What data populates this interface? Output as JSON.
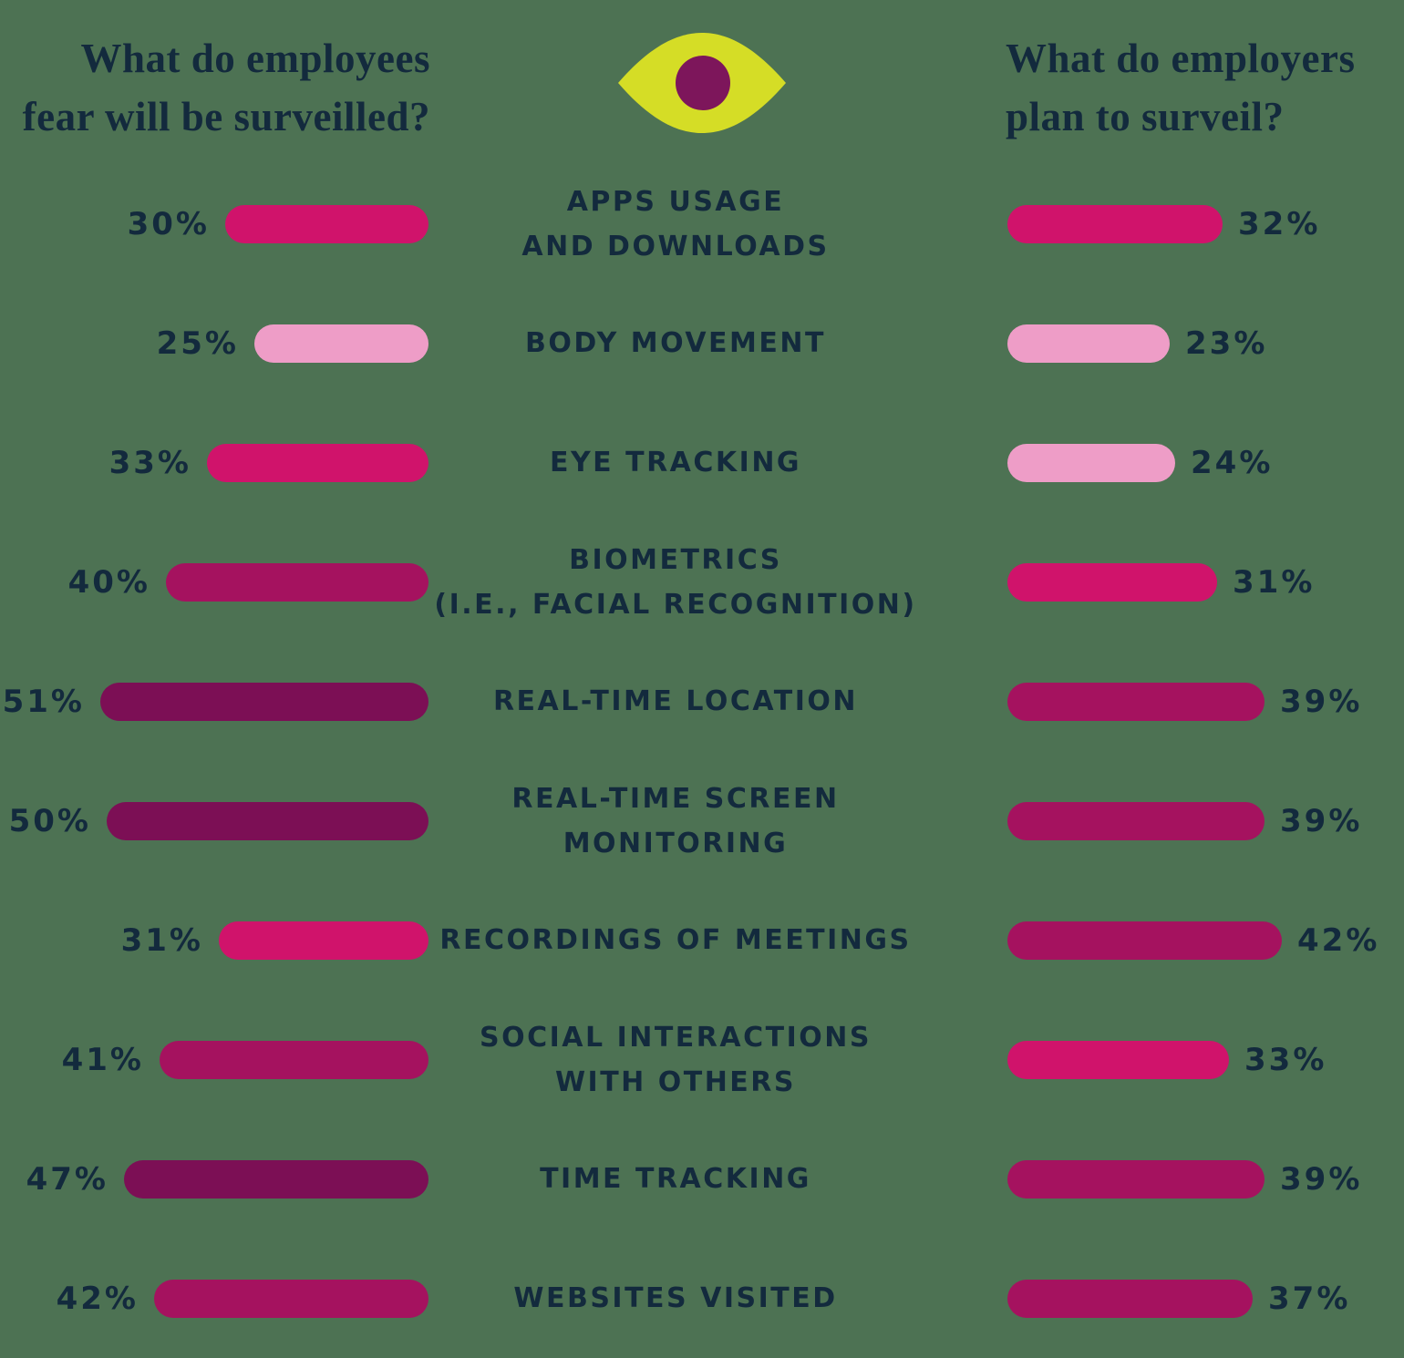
{
  "page": {
    "background_color": "#4d7253",
    "text_color": "#132a3d"
  },
  "headers": {
    "left": {
      "line1": "What do employees",
      "line2": "fear will be surveilled?"
    },
    "right": {
      "line1": "What do employers",
      "line2": "plan to surveil?"
    }
  },
  "eye_icon": {
    "iris_color": "#d5dd26",
    "pupil_color": "#7d165b"
  },
  "palette": {
    "light": "#ee9dc7",
    "bright": "#d0136b",
    "medium": "#a5125f",
    "dark": "#7c0f55"
  },
  "rows": [
    {
      "category_lines": [
        "APPS USAGE",
        "AND DOWNLOADS"
      ],
      "left": {
        "label": "30%",
        "value": 30
      },
      "right": {
        "label": "32%",
        "value": 32
      }
    },
    {
      "category_lines": [
        "BODY MOVEMENT"
      ],
      "left": {
        "label": "25%",
        "value": 25
      },
      "right": {
        "label": "23%",
        "value": 23
      }
    },
    {
      "category_lines": [
        "EYE TRACKING"
      ],
      "left": {
        "label": "33%",
        "value": 33
      },
      "right": {
        "label": "24%",
        "value": 24
      }
    },
    {
      "category_lines": [
        "BIOMETRICS",
        "(I.E., FACIAL RECOGNITION)"
      ],
      "left": {
        "label": "40%",
        "value": 40
      },
      "right": {
        "label": "31%",
        "value": 31
      }
    },
    {
      "category_lines": [
        "REAL-TIME LOCATION"
      ],
      "left": {
        "label": "51%",
        "value": 51
      },
      "right": {
        "label": "39%",
        "value": 39
      }
    },
    {
      "category_lines": [
        "REAL-TIME SCREEN",
        "MONITORING"
      ],
      "left": {
        "label": "50%",
        "value": 50
      },
      "right": {
        "label": "39%",
        "value": 39
      }
    },
    {
      "category_lines": [
        "RECORDINGS OF MEETINGS"
      ],
      "left": {
        "label": "31%",
        "value": 31
      },
      "right": {
        "label": "42%",
        "value": 42
      }
    },
    {
      "category_lines": [
        "SOCIAL INTERACTIONS",
        "WITH OTHERS"
      ],
      "left": {
        "label": "41%",
        "value": 41
      },
      "right": {
        "label": "33%",
        "value": 33
      }
    },
    {
      "category_lines": [
        "TIME TRACKING"
      ],
      "left": {
        "label": "47%",
        "value": 47
      },
      "right": {
        "label": "39%",
        "value": 39
      }
    },
    {
      "category_lines": [
        "WEBSITES VISITED"
      ],
      "left": {
        "label": "42%",
        "value": 42
      },
      "right": {
        "label": "37%",
        "value": 37
      }
    }
  ],
  "chart_data": {
    "type": "bar",
    "orientation": "horizontal-diverging",
    "unit": "%",
    "categories": [
      "APPS USAGE AND DOWNLOADS",
      "BODY MOVEMENT",
      "EYE TRACKING",
      "BIOMETRICS (I.E., FACIAL RECOGNITION)",
      "REAL-TIME LOCATION",
      "REAL-TIME SCREEN MONITORING",
      "RECORDINGS OF MEETINGS",
      "SOCIAL INTERACTIONS WITH OTHERS",
      "TIME TRACKING",
      "WEBSITES VISITED"
    ],
    "series": [
      {
        "name": "What do employees fear will be surveilled?",
        "side": "left",
        "values": [
          30,
          25,
          33,
          40,
          51,
          50,
          31,
          41,
          47,
          42
        ]
      },
      {
        "name": "What do employers plan to surveil?",
        "side": "right",
        "values": [
          32,
          23,
          24,
          31,
          39,
          39,
          42,
          33,
          39,
          37
        ]
      }
    ],
    "color_scale": [
      {
        "range": "23-29",
        "color": "#ee9dc7"
      },
      {
        "range": "30-36",
        "color": "#d0136b"
      },
      {
        "range": "37-46",
        "color": "#a5125f"
      },
      {
        "range": "47-51",
        "color": "#7c0f55"
      }
    ],
    "legend_position": "none",
    "grid": false
  }
}
